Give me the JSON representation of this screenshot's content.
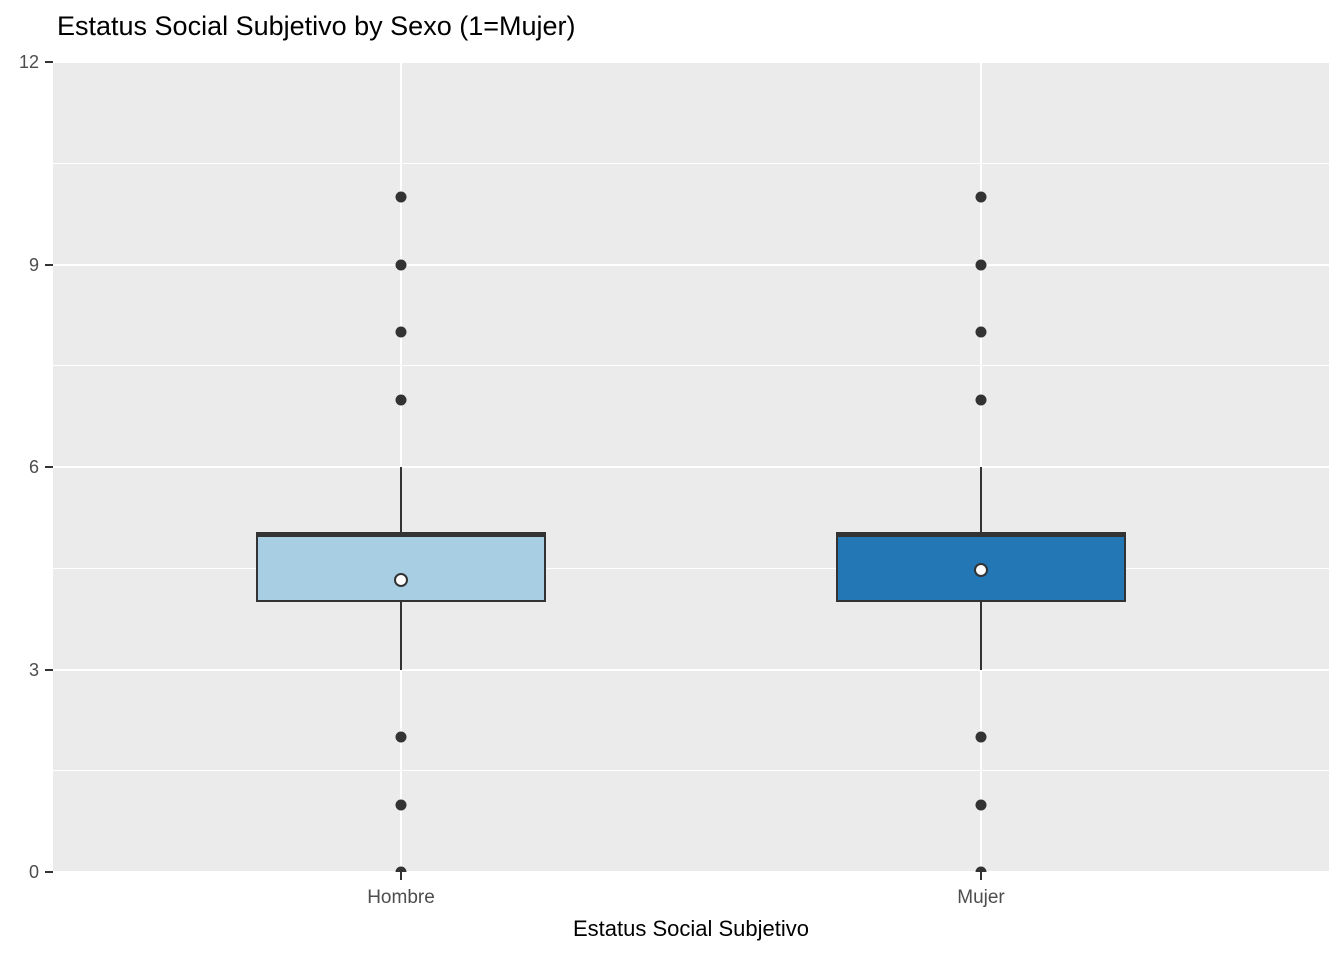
{
  "title": "Estatus Social Subjetivo by Sexo (1=Mujer)",
  "chart_data": {
    "type": "boxplot",
    "title": "Estatus Social Subjetivo by Sexo (1=Mujer)",
    "xlabel": "Estatus Social Subjetivo",
    "ylabel": "",
    "ylim": [
      0,
      12
    ],
    "y_major_ticks": [
      0,
      3,
      6,
      9,
      12
    ],
    "y_minor_ticks": [
      1.5,
      4.5,
      7.5,
      10.5
    ],
    "grid": "on",
    "legend": "none",
    "categories": [
      "Hombre",
      "Mujer"
    ],
    "series": [
      {
        "name": "Hombre",
        "fill": "#A7CEE2",
        "q1": 4,
        "median": 5,
        "q3": 5,
        "whisker_low": 3,
        "whisker_high": 6,
        "mean": 4.33,
        "outliers": [
          0,
          1,
          2,
          7,
          8,
          9,
          10
        ]
      },
      {
        "name": "Mujer",
        "fill": "#2277B4",
        "q1": 4,
        "median": 5,
        "q3": 5,
        "whisker_low": 3,
        "whisker_high": 6,
        "mean": 4.47,
        "outliers": [
          0,
          1,
          2,
          7,
          8,
          9,
          10
        ]
      }
    ],
    "colors": {
      "panel_background": "#EBEBEB",
      "gridline": "#FFFFFF",
      "stroke": "#333333",
      "tick_label": "#4D4D4D",
      "mean_fill": "#FFFFFF",
      "title_text": "#000000"
    }
  }
}
